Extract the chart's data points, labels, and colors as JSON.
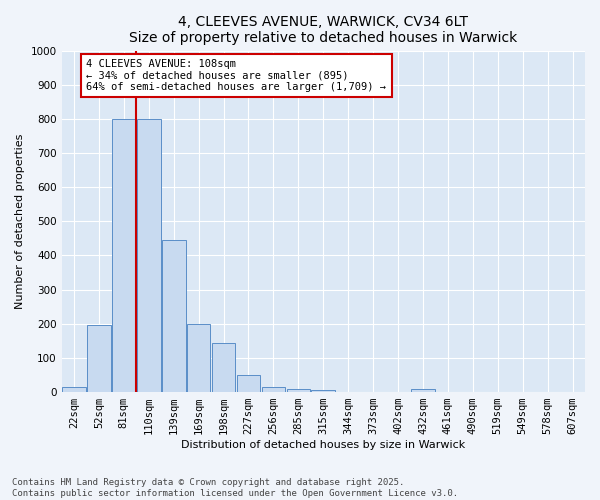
{
  "title_line1": "4, CLEEVES AVENUE, WARWICK, CV34 6LT",
  "title_line2": "Size of property relative to detached houses in Warwick",
  "xlabel": "Distribution of detached houses by size in Warwick",
  "ylabel": "Number of detached properties",
  "categories": [
    "22sqm",
    "52sqm",
    "81sqm",
    "110sqm",
    "139sqm",
    "169sqm",
    "198sqm",
    "227sqm",
    "256sqm",
    "285sqm",
    "315sqm",
    "344sqm",
    "373sqm",
    "402sqm",
    "432sqm",
    "461sqm",
    "490sqm",
    "519sqm",
    "549sqm",
    "578sqm",
    "607sqm"
  ],
  "values": [
    15,
    195,
    800,
    800,
    445,
    200,
    145,
    50,
    15,
    10,
    5,
    0,
    0,
    0,
    8,
    0,
    0,
    0,
    0,
    0,
    0
  ],
  "bar_color": "#c8daf0",
  "bar_edge_color": "#5a8ec8",
  "vline_x": 2.5,
  "vline_color": "#cc0000",
  "annotation_text": "4 CLEEVES AVENUE: 108sqm\n← 34% of detached houses are smaller (895)\n64% of semi-detached houses are larger (1,709) →",
  "annotation_box_facecolor": "#ffffff",
  "annotation_box_edgecolor": "#cc0000",
  "ylim": [
    0,
    1000
  ],
  "yticks": [
    0,
    100,
    200,
    300,
    400,
    500,
    600,
    700,
    800,
    900,
    1000
  ],
  "fig_background": "#f0f4fa",
  "axes_background": "#dce8f5",
  "grid_color": "#ffffff",
  "footer_line1": "Contains HM Land Registry data © Crown copyright and database right 2025.",
  "footer_line2": "Contains public sector information licensed under the Open Government Licence v3.0.",
  "title_fontsize": 10,
  "axis_label_fontsize": 8,
  "tick_fontsize": 7.5,
  "footer_fontsize": 6.5
}
